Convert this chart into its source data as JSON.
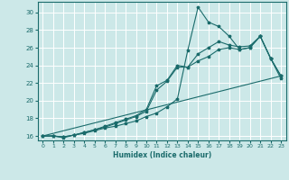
{
  "title": "",
  "xlabel": "Humidex (Indice chaleur)",
  "ylabel": "",
  "background_color": "#cce8e8",
  "grid_color": "#ffffff",
  "line_color": "#1a6b6b",
  "xlim": [
    -0.5,
    23.5
  ],
  "ylim": [
    15.5,
    31.2
  ],
  "xticks": [
    0,
    1,
    2,
    3,
    4,
    5,
    6,
    7,
    8,
    9,
    10,
    11,
    12,
    13,
    14,
    15,
    16,
    17,
    18,
    19,
    20,
    21,
    22,
    23
  ],
  "yticks": [
    16,
    18,
    20,
    22,
    24,
    26,
    28,
    30
  ],
  "series1": [
    16.0,
    16.0,
    15.9,
    16.1,
    16.3,
    16.6,
    16.9,
    17.1,
    17.4,
    17.7,
    18.2,
    18.6,
    19.3,
    20.2,
    25.7,
    30.6,
    28.9,
    28.4,
    27.3,
    25.8,
    26.0,
    27.3,
    24.8,
    22.8
  ],
  "series2": [
    16.0,
    16.0,
    15.9,
    16.1,
    16.4,
    16.7,
    17.0,
    17.4,
    17.8,
    18.2,
    18.8,
    21.2,
    22.2,
    23.8,
    23.8,
    25.3,
    26.0,
    26.7,
    26.3,
    26.1,
    26.2,
    27.3,
    24.8,
    22.8
  ],
  "series3": [
    16.0,
    16.0,
    15.8,
    16.1,
    16.4,
    16.7,
    17.1,
    17.5,
    17.9,
    18.3,
    19.0,
    21.7,
    22.3,
    24.0,
    23.8,
    24.5,
    25.0,
    25.8,
    26.0,
    25.8,
    26.0,
    27.3,
    24.8,
    22.5
  ],
  "series4_straight": [
    [
      0,
      23
    ],
    [
      16.0,
      22.8
    ]
  ]
}
